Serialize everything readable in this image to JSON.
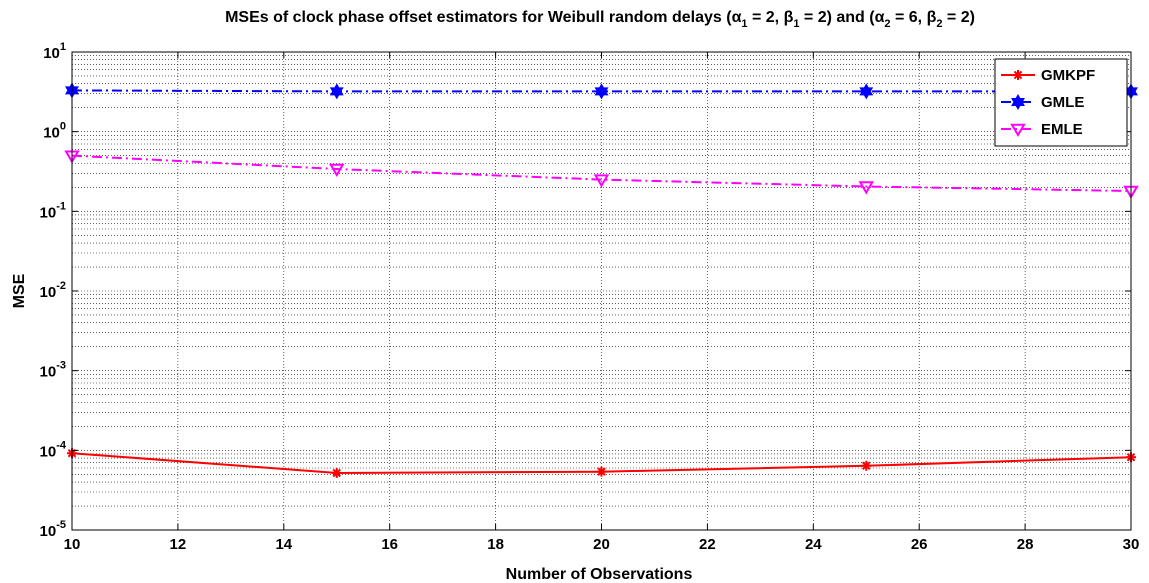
{
  "chart_data": {
    "type": "line",
    "title_parts": {
      "prefix": "MSEs of clock phase offset estimators for Weibull random delays (",
      "alpha": "α",
      "beta": "β",
      "sub1": "1",
      "sub2": "2",
      "a1_val": " = 2, ",
      "b1_val": " = 2) and (",
      "a2_val": " = 6, ",
      "b2_val": " = 2)"
    },
    "xlabel": "Number of Observations",
    "ylabel": "MSE",
    "xlim": [
      10,
      30
    ],
    "ylim_exponents": [
      -5,
      1
    ],
    "y_scale": "log",
    "x_ticks": [
      "10",
      "12",
      "14",
      "16",
      "18",
      "20",
      "22",
      "24",
      "26",
      "28",
      "30"
    ],
    "y_tick_base": "10",
    "y_tick_exponents": [
      "-5",
      "-4",
      "-3",
      "-2",
      "-1",
      "0",
      "1"
    ],
    "grid": true,
    "minor_grid": true,
    "legend_position": "top-right",
    "x": [
      10,
      15,
      20,
      25,
      30
    ],
    "series": [
      {
        "name": "GMKPF",
        "color": "#ff0000",
        "marker": "asterisk",
        "dash": "solid",
        "values": [
          9.2e-05,
          5.2e-05,
          5.4e-05,
          6.4e-05,
          8.2e-05
        ]
      },
      {
        "name": "GMLE",
        "color": "#0000ff",
        "marker": "hexagram",
        "dash": "dashdot",
        "values": [
          3.3,
          3.2,
          3.2,
          3.2,
          3.2
        ]
      },
      {
        "name": "EMLE",
        "color": "#ff00ff",
        "marker": "triangle-down",
        "dash": "dashdot",
        "values": [
          0.5,
          0.34,
          0.25,
          0.205,
          0.18
        ]
      }
    ]
  }
}
